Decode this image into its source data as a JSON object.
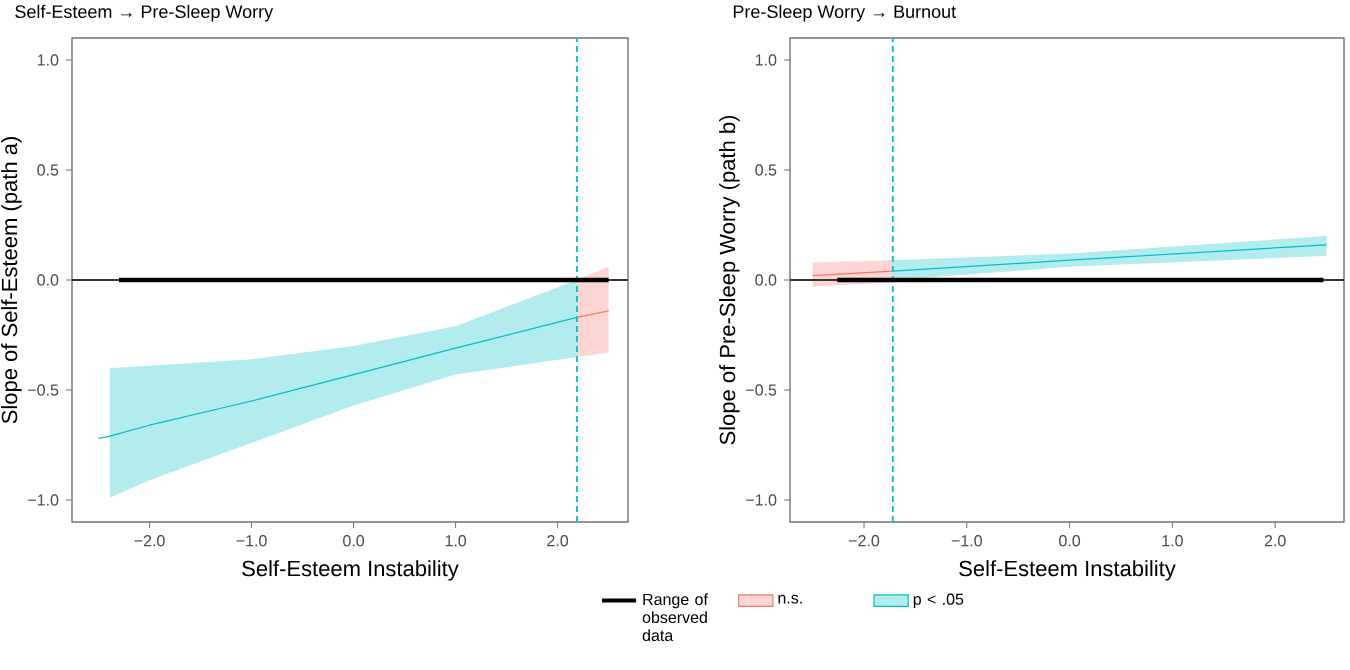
{
  "chart_data": [
    {
      "type": "line",
      "title": "Self-Esteem → Pre-Sleep Worry",
      "xlabel": "Self-Esteem Instability",
      "ylabel": "Slope of Self-Esteem (path a)",
      "xlim": [
        -2.76,
        2.69
      ],
      "ylim": [
        -1.1,
        1.1
      ],
      "xticks": [
        {
          "value": -2,
          "label": "−2.0"
        },
        {
          "value": -1,
          "label": "−1.0"
        },
        {
          "value": 0,
          "label": "0.0"
        },
        {
          "value": 1,
          "label": "1.0"
        },
        {
          "value": 2,
          "label": "2.0"
        }
      ],
      "yticks": [
        {
          "value": -1,
          "label": "−1.0"
        },
        {
          "value": -0.5,
          "label": "−0.5"
        },
        {
          "value": 0,
          "label": "0.0"
        },
        {
          "value": 0.5,
          "label": "0.5"
        },
        {
          "value": 1,
          "label": "1.0"
        }
      ],
      "grid": false,
      "legend": "bottom",
      "series": [
        {
          "name": "Range of observed data",
          "color": "#000000",
          "x": [
            -2.3,
            2.5
          ],
          "values": [
            0,
            0
          ]
        },
        {
          "name": "n.s.",
          "color": "#f8766d",
          "x": [
            2.19,
            2.5
          ],
          "values": [
            -0.17,
            -0.14
          ],
          "lower": [
            -0.35,
            -0.33
          ],
          "upper": [
            0.0,
            0.06
          ]
        },
        {
          "name": "p < .05",
          "color": "#00bfc4",
          "x": [
            -2.5,
            -2.39,
            -2,
            -1,
            0,
            1,
            2.19
          ],
          "values": [
            -0.72,
            -0.71,
            -0.66,
            -0.55,
            -0.43,
            -0.31,
            -0.17
          ],
          "lower": [
            null,
            -0.99,
            -0.91,
            -0.74,
            -0.57,
            -0.43,
            -0.35
          ],
          "upper": [
            null,
            -0.4,
            -0.39,
            -0.36,
            -0.3,
            -0.21,
            0.0
          ]
        }
      ],
      "ref_lines": [
        {
          "axis": "y",
          "value": 0,
          "color": "#333333"
        },
        {
          "axis": "x",
          "value": 2.19,
          "color": "#00bfc4",
          "line_style": "dashed"
        }
      ]
    },
    {
      "type": "line",
      "title": "Pre-Sleep Worry → Burnout",
      "xlabel": "Self-Esteem Instability",
      "ylabel": "Slope of Pre-Sleep Worry (path b)",
      "xlim": [
        -2.72,
        2.67
      ],
      "ylim": [
        -1.1,
        1.1
      ],
      "xticks": [
        {
          "value": -2,
          "label": "−2.0"
        },
        {
          "value": -1,
          "label": "−1.0"
        },
        {
          "value": 0,
          "label": "0.0"
        },
        {
          "value": 1,
          "label": "1.0"
        },
        {
          "value": 2,
          "label": "2.0"
        }
      ],
      "yticks": [
        {
          "value": -1,
          "label": "−1.0"
        },
        {
          "value": -0.5,
          "label": "−0.5"
        },
        {
          "value": 0,
          "label": "0.0"
        },
        {
          "value": 0.5,
          "label": "0.5"
        },
        {
          "value": 1,
          "label": "1.0"
        }
      ],
      "grid": false,
      "series": [
        {
          "color": "#000000",
          "x": [
            -2.26,
            2.47
          ],
          "values": [
            0,
            0
          ]
        },
        {
          "color": "#f8766d",
          "x": [
            -2.5,
            -1.72
          ],
          "values": [
            0.02,
            0.04
          ],
          "lower": [
            -0.03,
            -0.01
          ],
          "upper": [
            0.08,
            0.09
          ]
        },
        {
          "color": "#00bfc4",
          "x": [
            -1.72,
            0,
            2.5
          ],
          "values": [
            0.04,
            0.09,
            0.16
          ],
          "lower": [
            0.0,
            0.06,
            0.11
          ],
          "upper": [
            0.09,
            0.12,
            0.2
          ]
        }
      ],
      "ref_lines": [
        {
          "axis": "y",
          "value": 0,
          "color": "#333333"
        },
        {
          "axis": "x",
          "value": -1.72,
          "color": "#00bfc4",
          "line_style": "dashed"
        }
      ]
    }
  ]
}
